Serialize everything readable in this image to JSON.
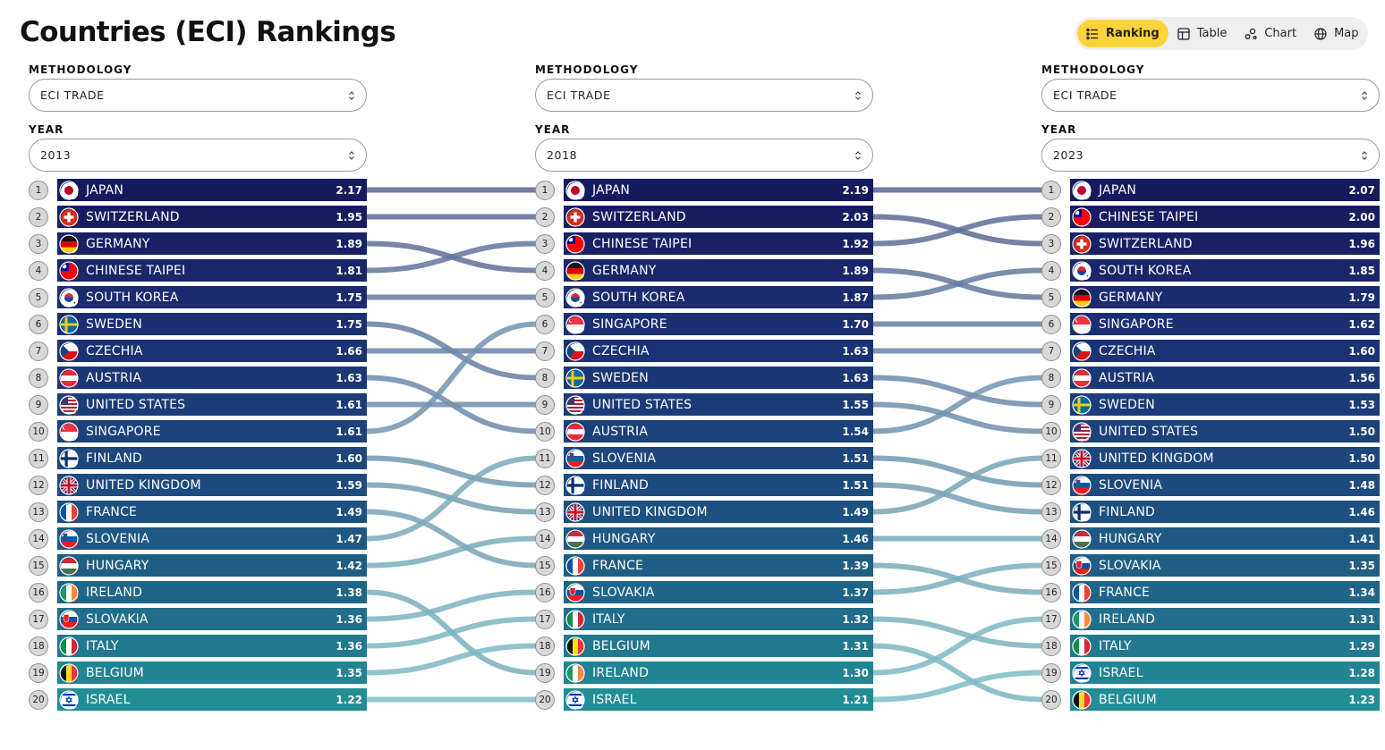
{
  "header": {
    "title": "Countries (ECI) Rankings"
  },
  "views": [
    {
      "label": "Ranking",
      "icon": "ranking-list-icon",
      "active": true
    },
    {
      "label": "Table",
      "icon": "table-icon",
      "active": false
    },
    {
      "label": "Chart",
      "icon": "chart-icon",
      "active": false
    },
    {
      "label": "Map",
      "icon": "globe-icon",
      "active": false
    }
  ],
  "columns": [
    {
      "methodology_label": "METHODOLOGY",
      "methodology": "ECI TRADE",
      "year_label": "YEAR",
      "year": "2013",
      "rows": [
        {
          "rank": "1",
          "country": "JAPAN",
          "value": "2.17"
        },
        {
          "rank": "2",
          "country": "SWITZERLAND",
          "value": "1.95"
        },
        {
          "rank": "3",
          "country": "GERMANY",
          "value": "1.89"
        },
        {
          "rank": "4",
          "country": "CHINESE TAIPEI",
          "value": "1.81"
        },
        {
          "rank": "5",
          "country": "SOUTH KOREA",
          "value": "1.75"
        },
        {
          "rank": "6",
          "country": "SWEDEN",
          "value": "1.75"
        },
        {
          "rank": "7",
          "country": "CZECHIA",
          "value": "1.66"
        },
        {
          "rank": "8",
          "country": "AUSTRIA",
          "value": "1.63"
        },
        {
          "rank": "9",
          "country": "UNITED STATES",
          "value": "1.61"
        },
        {
          "rank": "10",
          "country": "SINGAPORE",
          "value": "1.61"
        },
        {
          "rank": "11",
          "country": "FINLAND",
          "value": "1.60"
        },
        {
          "rank": "12",
          "country": "UNITED KINGDOM",
          "value": "1.59"
        },
        {
          "rank": "13",
          "country": "FRANCE",
          "value": "1.49"
        },
        {
          "rank": "14",
          "country": "SLOVENIA",
          "value": "1.47"
        },
        {
          "rank": "15",
          "country": "HUNGARY",
          "value": "1.42"
        },
        {
          "rank": "16",
          "country": "IRELAND",
          "value": "1.38"
        },
        {
          "rank": "17",
          "country": "SLOVAKIA",
          "value": "1.36"
        },
        {
          "rank": "18",
          "country": "ITALY",
          "value": "1.36"
        },
        {
          "rank": "19",
          "country": "BELGIUM",
          "value": "1.35"
        },
        {
          "rank": "20",
          "country": "ISRAEL",
          "value": "1.22"
        }
      ]
    },
    {
      "methodology_label": "METHODOLOGY",
      "methodology": "ECI TRADE",
      "year_label": "YEAR",
      "year": "2018",
      "rows": [
        {
          "rank": "1",
          "country": "JAPAN",
          "value": "2.19"
        },
        {
          "rank": "2",
          "country": "SWITZERLAND",
          "value": "2.03"
        },
        {
          "rank": "3",
          "country": "CHINESE TAIPEI",
          "value": "1.92"
        },
        {
          "rank": "4",
          "country": "GERMANY",
          "value": "1.89"
        },
        {
          "rank": "5",
          "country": "SOUTH KOREA",
          "value": "1.87"
        },
        {
          "rank": "6",
          "country": "SINGAPORE",
          "value": "1.70"
        },
        {
          "rank": "7",
          "country": "CZECHIA",
          "value": "1.63"
        },
        {
          "rank": "8",
          "country": "SWEDEN",
          "value": "1.63"
        },
        {
          "rank": "9",
          "country": "UNITED STATES",
          "value": "1.55"
        },
        {
          "rank": "10",
          "country": "AUSTRIA",
          "value": "1.54"
        },
        {
          "rank": "11",
          "country": "SLOVENIA",
          "value": "1.51"
        },
        {
          "rank": "12",
          "country": "FINLAND",
          "value": "1.51"
        },
        {
          "rank": "13",
          "country": "UNITED KINGDOM",
          "value": "1.49"
        },
        {
          "rank": "14",
          "country": "HUNGARY",
          "value": "1.46"
        },
        {
          "rank": "15",
          "country": "FRANCE",
          "value": "1.39"
        },
        {
          "rank": "16",
          "country": "SLOVAKIA",
          "value": "1.37"
        },
        {
          "rank": "17",
          "country": "ITALY",
          "value": "1.32"
        },
        {
          "rank": "18",
          "country": "BELGIUM",
          "value": "1.31"
        },
        {
          "rank": "19",
          "country": "IRELAND",
          "value": "1.30"
        },
        {
          "rank": "20",
          "country": "ISRAEL",
          "value": "1.21"
        }
      ]
    },
    {
      "methodology_label": "METHODOLOGY",
      "methodology": "ECI TRADE",
      "year_label": "YEAR",
      "year": "2023",
      "rows": [
        {
          "rank": "1",
          "country": "JAPAN",
          "value": "2.07"
        },
        {
          "rank": "2",
          "country": "CHINESE TAIPEI",
          "value": "2.00"
        },
        {
          "rank": "3",
          "country": "SWITZERLAND",
          "value": "1.96"
        },
        {
          "rank": "4",
          "country": "SOUTH KOREA",
          "value": "1.85"
        },
        {
          "rank": "5",
          "country": "GERMANY",
          "value": "1.79"
        },
        {
          "rank": "6",
          "country": "SINGAPORE",
          "value": "1.62"
        },
        {
          "rank": "7",
          "country": "CZECHIA",
          "value": "1.60"
        },
        {
          "rank": "8",
          "country": "AUSTRIA",
          "value": "1.56"
        },
        {
          "rank": "9",
          "country": "SWEDEN",
          "value": "1.53"
        },
        {
          "rank": "10",
          "country": "UNITED STATES",
          "value": "1.50"
        },
        {
          "rank": "11",
          "country": "UNITED KINGDOM",
          "value": "1.50"
        },
        {
          "rank": "12",
          "country": "SLOVENIA",
          "value": "1.48"
        },
        {
          "rank": "13",
          "country": "FINLAND",
          "value": "1.46"
        },
        {
          "rank": "14",
          "country": "HUNGARY",
          "value": "1.41"
        },
        {
          "rank": "15",
          "country": "SLOVAKIA",
          "value": "1.35"
        },
        {
          "rank": "16",
          "country": "FRANCE",
          "value": "1.34"
        },
        {
          "rank": "17",
          "country": "IRELAND",
          "value": "1.31"
        },
        {
          "rank": "18",
          "country": "ITALY",
          "value": "1.29"
        },
        {
          "rank": "19",
          "country": "ISRAEL",
          "value": "1.28"
        },
        {
          "rank": "20",
          "country": "BELGIUM",
          "value": "1.23"
        }
      ]
    }
  ],
  "colors": {
    "bar_gradient": [
      "#141a5c",
      "#1a2a6e",
      "#1c3a78",
      "#1d4d80",
      "#1f6688",
      "#238d96"
    ],
    "link_gradient": [
      "#5a6591",
      "#6a86a8",
      "#7aa8b9",
      "#7cbcc6"
    ],
    "active_view": "#ffd43b"
  }
}
